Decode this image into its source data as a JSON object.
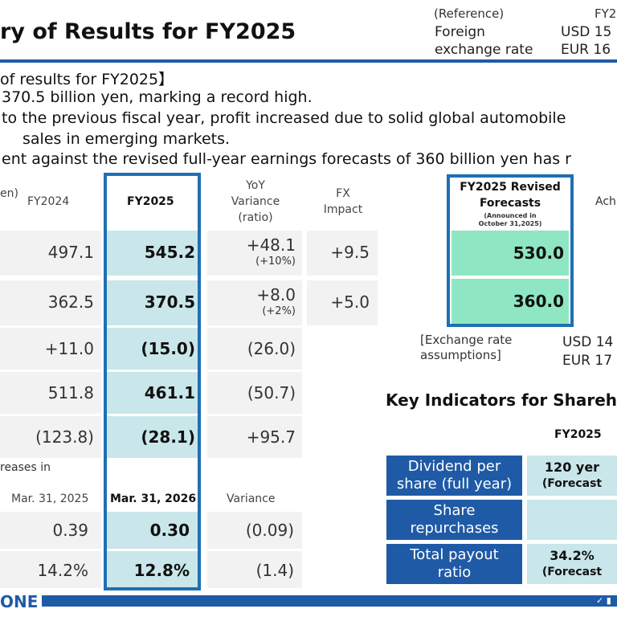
{
  "header": {
    "title": "ry of Results for FY2025",
    "reference_label": "(Reference)",
    "reference_col": "FY2",
    "fx_label_1": "Foreign",
    "fx_label_2": "exchange rate",
    "usd": "USD 15",
    "eur": "EUR 16"
  },
  "summary": {
    "heading": "of results for FY2025】",
    "line1": "370.5 billion yen, marking a record high.",
    "line2": "to the previous fiscal year, profit increased due to solid global automobile",
    "line3": "sales in emerging markets.",
    "line4": "ent against the revised full-year earnings forecasts of 360 billion yen has r"
  },
  "table": {
    "unit": "en)",
    "col_fy2024": "FY2024",
    "col_fy2025": "FY2025",
    "col_yoy_1": "YoY",
    "col_yoy_2": "Variance",
    "col_yoy_3": "(ratio)",
    "col_fx_1": "FX",
    "col_fx_2": "Impact",
    "rows": [
      {
        "fy2024": "497.1",
        "fy2025": "545.2",
        "yoy": "+48.1",
        "ratio": "(+10%)",
        "fx": "+9.5"
      },
      {
        "fy2024": "362.5",
        "fy2025": "370.5",
        "yoy": "+8.0",
        "ratio": "(+2%)",
        "fx": "+5.0"
      },
      {
        "fy2024": "+11.0",
        "fy2025": "(15.0)",
        "yoy": "(26.0)"
      },
      {
        "fy2024": "511.8",
        "fy2025": "461.1",
        "yoy": "(50.7)"
      },
      {
        "fy2024": "(123.8)",
        "fy2025": "(28.1)",
        "yoy": "+95.7"
      }
    ],
    "sub_heading": "reases in",
    "col_mar2025": "Mar. 31, 2025",
    "col_mar2026": "Mar. 31, 2026",
    "col_variance": "Variance",
    "rows2": [
      {
        "prev": "0.39",
        "curr": "0.30",
        "var": "(0.09)"
      },
      {
        "prev": "14.2%",
        "curr": "12.8%",
        "var": "(1.4)"
      }
    ]
  },
  "forecast": {
    "title_1": "FY2025 Revised",
    "title_2": "Forecasts",
    "note_1": "(Announced in",
    "note_2": "October 31,2025)",
    "ach": "Ach",
    "v1": "530.0",
    "v2": "360.0",
    "assump_1": "[Exchange rate",
    "assump_2": "assumptions]",
    "usd": "USD  14",
    "eur": "EUR  17"
  },
  "kpi": {
    "title": "Key Indicators for Shareh",
    "col": "FY2025",
    "rows": [
      {
        "label_1": "Dividend per",
        "label_2": "share (full year)",
        "val_1": "120 yer",
        "val_2": "(Forecast"
      },
      {
        "label_1": "Share",
        "label_2": "repurchases",
        "val_1": "",
        "val_2": ""
      },
      {
        "label_1": "Total payout",
        "label_2": "ratio",
        "val_1": "34.2%",
        "val_2": "(Forecast"
      }
    ]
  },
  "footer": {
    "logo": "ONE"
  },
  "colors": {
    "brand_blue": "#1f5aa6",
    "highlight": "#c9e6ea",
    "forecast_green": "#8ee6c3"
  }
}
